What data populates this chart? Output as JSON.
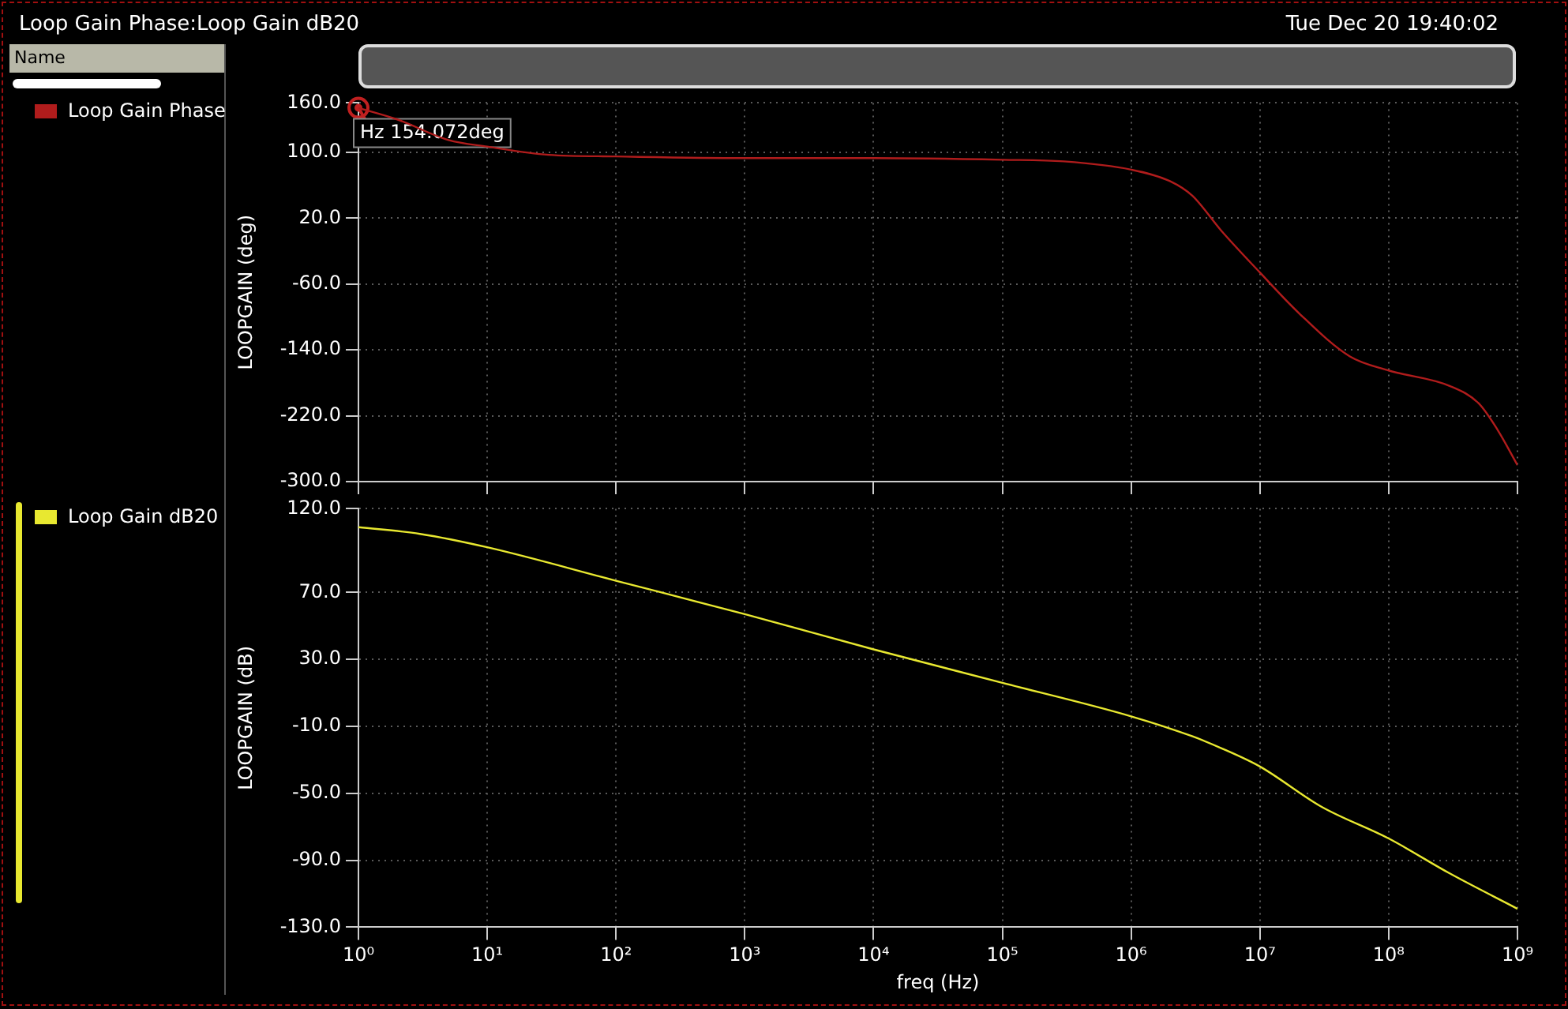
{
  "chart_data": [
    {
      "type": "line",
      "title": "Loop Gain Phase:Loop Gain dB20",
      "subtitle": "Tue Dec 20 19:40:02",
      "legend_title": "Name",
      "ylabel": "LOOPGAIN (deg)",
      "legend": "left",
      "grid": true,
      "log": "x",
      "tick_labels": "y",
      "marker": "none",
      "line_style": "solid",
      "x": [
        1,
        2,
        5,
        10,
        30,
        100,
        1000,
        10000,
        100000,
        300000,
        1000000,
        2000000,
        3000000,
        5000000,
        10000000,
        20000000,
        50000000,
        100000000,
        300000000,
        500000000,
        700000000,
        1000000000
      ],
      "series": [
        {
          "name": "Loop Gain Phase",
          "color": "#b01c1c",
          "values": [
            154,
            140,
            115,
            107,
            97,
            95,
            93,
            93,
            91,
            89,
            79,
            65,
            47,
            5,
            -46,
            -95,
            -148,
            -165,
            -184,
            -205,
            -237,
            -280
          ]
        }
      ],
      "xlim": [
        1,
        1000000000
      ],
      "xticks": [
        {
          "value": 1,
          "label": null
        },
        {
          "value": 10,
          "label": null
        },
        {
          "value": 100,
          "label": null
        },
        {
          "value": 1000,
          "label": null
        },
        {
          "value": 10000,
          "label": null
        },
        {
          "value": 100000,
          "label": null
        },
        {
          "value": 1000000,
          "label": null
        },
        {
          "value": 10000000,
          "label": null
        },
        {
          "value": 100000000,
          "label": null
        },
        {
          "value": 1000000000,
          "label": null
        }
      ],
      "ylim": [
        -300,
        160
      ],
      "yticks": [
        {
          "value": -300,
          "label": "-300.0"
        },
        {
          "value": -220,
          "label": "-220.0"
        },
        {
          "value": -140,
          "label": "-140.0"
        },
        {
          "value": -60,
          "label": "-60.0"
        },
        {
          "value": 20,
          "label": "20.0"
        },
        {
          "value": 100,
          "label": "100.0"
        },
        {
          "value": 160,
          "label": "160.0"
        }
      ],
      "annotations": [
        {
          "text": "Hz 154.072deg",
          "x": 1,
          "y": 154.072
        }
      ]
    },
    {
      "type": "line",
      "xlabel": "freq (Hz)",
      "ylabel": "LOOPGAIN (dB)",
      "legend": "left",
      "grid": true,
      "log": "x",
      "marker": "none",
      "line_style": "solid",
      "x": [
        1,
        3,
        10,
        100,
        1000,
        10000,
        100000,
        1000000,
        3000000,
        5000000,
        10000000,
        30000000,
        100000000,
        300000000,
        1000000000
      ],
      "series": [
        {
          "name": "Loop Gain dB20",
          "color": "#e8e830",
          "values": [
            109,
            105,
            97,
            77,
            57,
            36,
            16,
            -4,
            -16,
            -23,
            -34,
            -58,
            -77,
            -98,
            -119
          ]
        }
      ],
      "xlim": [
        1,
        1000000000
      ],
      "xticks": [
        {
          "value": 1,
          "label": "10⁰"
        },
        {
          "value": 10,
          "label": "10¹"
        },
        {
          "value": 100,
          "label": "10²"
        },
        {
          "value": 1000,
          "label": "10³"
        },
        {
          "value": 10000,
          "label": "10⁴"
        },
        {
          "value": 100000,
          "label": "10⁵"
        },
        {
          "value": 1000000,
          "label": "10⁶"
        },
        {
          "value": 10000000,
          "label": "10⁷"
        },
        {
          "value": 100000000,
          "label": "10⁸"
        },
        {
          "value": 1000000000,
          "label": "10⁹"
        }
      ],
      "ylim": [
        -130,
        120
      ],
      "yticks": [
        {
          "value": -130,
          "label": "-130.0"
        },
        {
          "value": -90,
          "label": "-90.0"
        },
        {
          "value": -50,
          "label": "-50.0"
        },
        {
          "value": -10,
          "label": "-10.0"
        },
        {
          "value": 30,
          "label": "30.0"
        },
        {
          "value": 70,
          "label": "70.0"
        },
        {
          "value": 120,
          "label": "120.0"
        }
      ]
    }
  ]
}
